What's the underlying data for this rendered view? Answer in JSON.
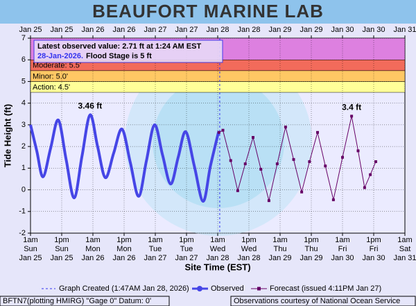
{
  "chart_data": {
    "type": "line",
    "title": "BEAUFORT MARINE LAB",
    "y_label": "Tide Height (ft)",
    "x_label": "Site Time (EST)",
    "xlim": [
      0,
      144
    ],
    "ylim": [
      -2,
      7
    ],
    "yticks": [
      -2,
      -1,
      0,
      1,
      2,
      3,
      4,
      5,
      6,
      7
    ],
    "xticks": [
      {
        "value": 0,
        "label": "1am",
        "day": "Sun",
        "date": "Jan 25"
      },
      {
        "value": 12,
        "label": "1pm",
        "day": "Sun",
        "date": "Jan 25"
      },
      {
        "value": 24,
        "label": "1am",
        "day": "Mon",
        "date": "Jan 26"
      },
      {
        "value": 36,
        "label": "1pm",
        "day": "Mon",
        "date": "Jan 26"
      },
      {
        "value": 48,
        "label": "1am",
        "day": "Tue",
        "date": "Jan 27"
      },
      {
        "value": 60,
        "label": "1pm",
        "day": "Tue",
        "date": "Jan 27"
      },
      {
        "value": 72,
        "label": "1am",
        "day": "Wed",
        "date": "Jan 28"
      },
      {
        "value": 84,
        "label": "1pm",
        "day": "Wed",
        "date": "Jan 28"
      },
      {
        "value": 96,
        "label": "1am",
        "day": "Thu",
        "date": "Jan 29"
      },
      {
        "value": 108,
        "label": "1pm",
        "day": "Thu",
        "date": "Jan 29"
      },
      {
        "value": 120,
        "label": "1am",
        "day": "Fri",
        "date": "Jan 30"
      },
      {
        "value": 132,
        "label": "1pm",
        "day": "Fri",
        "date": "Jan 30"
      },
      {
        "value": 144,
        "label": "1am",
        "day": "Sat",
        "date": "Jan 31"
      }
    ],
    "grid": true,
    "flood_categories": [
      {
        "label": "Action: 4.5'",
        "value": 4.5,
        "color": "#ffff99"
      },
      {
        "label": "Minor: 5.0'",
        "value": 5.0,
        "color": "#ffc864"
      },
      {
        "label": "Moderate: 5.5'",
        "value": 5.5,
        "color": "#f26b5b"
      },
      {
        "value": 6.0,
        "color": "#dd80e0"
      }
    ],
    "info_box": [
      "Latest observed value: 2.71 ft at 1:24 AM EST",
      "28-Jan-2026.",
      "Flood Stage is 5 ft"
    ],
    "graph_created": {
      "label": "Graph Created (1:47AM Jan 28, 2026)",
      "x": 72.78
    },
    "series": [
      {
        "name": "Observed",
        "color": "#4646e6",
        "peak_label": "3.46 ft",
        "x": [
          0,
          2.4,
          4.8,
          7.7,
          10.7,
          13.7,
          16.8,
          19.8,
          22.9,
          25.8,
          28.8,
          32,
          35.2,
          38.4,
          41.6,
          44.6,
          47.7,
          50.8,
          53.9,
          56.8,
          59.7,
          63,
          66.4,
          69.2,
          72.4
        ],
        "values": [
          3.0,
          1.8,
          0.6,
          1.9,
          3.22,
          1.4,
          -0.37,
          1.55,
          3.46,
          2.0,
          0.56,
          1.7,
          2.8,
          1.25,
          -0.3,
          1.35,
          3.0,
          1.6,
          0.27,
          1.5,
          2.68,
          1.1,
          -0.53,
          1.1,
          2.71
        ]
      },
      {
        "name": "Forecast (issued 4:11PM Jan 27)",
        "color": "#660066",
        "peak_label": "3.4 ft",
        "x": [
          72.5,
          74,
          77,
          79.7,
          82.6,
          85.6,
          88.6,
          91.7,
          94.9,
          98.1,
          101.2,
          104.3,
          107.3,
          110.4,
          113.4,
          116.5,
          120,
          123.5,
          126,
          128.5,
          130.7,
          132.8
        ],
        "values": [
          2.65,
          2.75,
          1.35,
          -0.04,
          1.2,
          2.42,
          0.95,
          -0.5,
          1.2,
          2.9,
          1.4,
          -0.1,
          1.3,
          2.65,
          1.1,
          -0.46,
          1.5,
          3.4,
          1.8,
          0.1,
          0.7,
          1.3
        ]
      }
    ],
    "footer_left": "BFTN7(plotting HMIRG) \"Gage 0\" Datum: 0'",
    "footer_right": "Observations courtesy of National Ocean Service"
  }
}
